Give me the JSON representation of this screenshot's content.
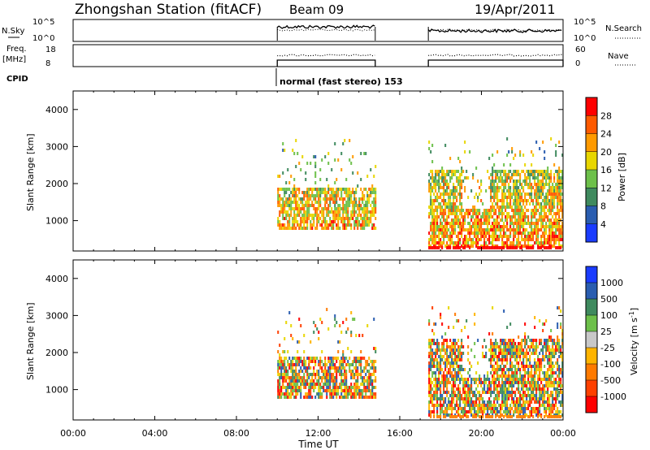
{
  "header": {
    "station": "Zhongshan Station (fitACF)",
    "beam": "Beam 09",
    "date": "19/Apr/2011"
  },
  "chart_data": [
    {
      "type": "line",
      "panel": "noise",
      "left_label": "N.Sky",
      "right_label": "N.Search",
      "left_ticks": [
        "10^5",
        "10^0"
      ],
      "right_ticks": [
        "10^5",
        "10^0"
      ],
      "series": [
        {
          "name": "N.Sky",
          "segments": [
            [
              10.0,
              14.8
            ],
            [
              17.4,
              24.0
            ]
          ]
        },
        {
          "name": "N.Search",
          "segments": [
            [
              10.0,
              14.8
            ],
            [
              17.4,
              24.0
            ]
          ]
        }
      ]
    },
    {
      "type": "line",
      "panel": "frequency",
      "left_label_top": "Freq.",
      "left_label_bottom": "[MHz]",
      "right_label": "Nave",
      "left_ticks": [
        "18",
        "8"
      ],
      "right_ticks": [
        "60",
        "0"
      ],
      "series": [
        {
          "name": "Freq.",
          "segments": [
            [
              10.0,
              14.8
            ],
            [
              17.4,
              24.0
            ]
          ]
        },
        {
          "name": "Nave",
          "segments": [
            [
              10.0,
              14.8
            ],
            [
              17.4,
              24.0
            ]
          ]
        }
      ]
    },
    {
      "type": "text",
      "panel": "cpid",
      "label": "CPID",
      "mode_text": "normal (fast stereo) 153",
      "start": 10.0
    },
    {
      "type": "heatmap",
      "panel": "power",
      "ylabel": "Slant Range [km]",
      "yticks": [
        1000,
        2000,
        3000,
        4000
      ],
      "ylim": [
        180,
        4500
      ],
      "colorbar_label": "Power [dB]",
      "colorbar_ticks": [
        "28",
        "24",
        "20",
        "16",
        "12",
        "8",
        "4"
      ],
      "colorbar_colors": [
        "#ff0000",
        "#ff5a00",
        "#ff9a00",
        "#e8d600",
        "#6dc04a",
        "#3f8a5e",
        "#2a5db0",
        "#1a3cff"
      ],
      "active_intervals": [
        [
          10.0,
          14.8
        ],
        [
          17.4,
          24.0
        ]
      ]
    },
    {
      "type": "heatmap",
      "panel": "velocity",
      "ylabel": "Slant Range [km]",
      "yticks": [
        1000,
        2000,
        3000,
        4000
      ],
      "ylim": [
        180,
        4500
      ],
      "colorbar_label": "Velocity [m s^-1]",
      "colorbar_ticks": [
        "1000",
        "500",
        "100",
        "25",
        "-25",
        "-100",
        "-500",
        "-1000"
      ],
      "colorbar_colors": [
        "#1a3cff",
        "#2a5db0",
        "#3f8a5e",
        "#6dc04a",
        "#c8c8c8",
        "#ffb400",
        "#ff7a00",
        "#ff4000",
        "#ff0000"
      ],
      "active_intervals": [
        [
          10.0,
          14.8
        ],
        [
          17.4,
          24.0
        ]
      ]
    }
  ],
  "xaxis": {
    "label": "Time UT",
    "ticks": [
      "00:00",
      "04:00",
      "08:00",
      "12:00",
      "16:00",
      "20:00",
      "00:00"
    ],
    "tick_hours": [
      0,
      4,
      8,
      12,
      16,
      20,
      24
    ]
  }
}
